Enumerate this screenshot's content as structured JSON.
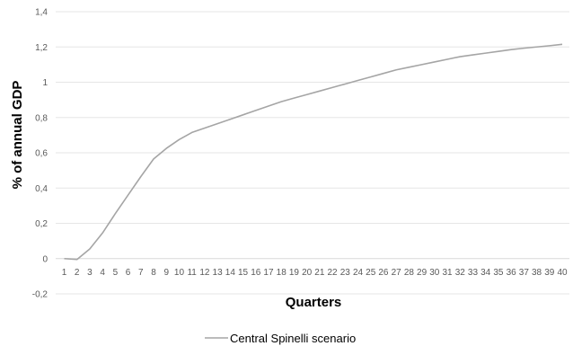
{
  "chart_data": {
    "type": "line",
    "xlabel": "Quarters",
    "ylabel": "% of annual GDP",
    "ylim": [
      -0.2,
      1.4
    ],
    "yticks": [
      "-0,2",
      "0",
      "0,2",
      "0,4",
      "0,6",
      "0,8",
      "1",
      "1,2",
      "1,4"
    ],
    "ytick_values": [
      -0.2,
      0,
      0.2,
      0.4,
      0.6,
      0.8,
      1.0,
      1.2,
      1.4
    ],
    "categories": [
      "1",
      "2",
      "3",
      "4",
      "5",
      "6",
      "7",
      "8",
      "9",
      "10",
      "11",
      "12",
      "13",
      "14",
      "15",
      "16",
      "17",
      "18",
      "19",
      "20",
      "21",
      "22",
      "23",
      "24",
      "25",
      "26",
      "27",
      "28",
      "29",
      "30",
      "31",
      "32",
      "33",
      "34",
      "35",
      "36",
      "37",
      "38",
      "39",
      "40"
    ],
    "grid": "horizontal",
    "legend_position": "bottom",
    "series": [
      {
        "name": "Central Spinelli scenario",
        "color": "#a5a5a5",
        "values": [
          0.0,
          -0.005,
          0.055,
          0.145,
          0.255,
          0.36,
          0.465,
          0.565,
          0.625,
          0.675,
          0.715,
          0.74,
          0.765,
          0.79,
          0.815,
          0.84,
          0.865,
          0.89,
          0.91,
          0.93,
          0.95,
          0.97,
          0.99,
          1.01,
          1.03,
          1.05,
          1.07,
          1.085,
          1.1,
          1.115,
          1.13,
          1.145,
          1.155,
          1.165,
          1.175,
          1.185,
          1.193,
          1.2,
          1.207,
          1.215
        ]
      }
    ]
  }
}
